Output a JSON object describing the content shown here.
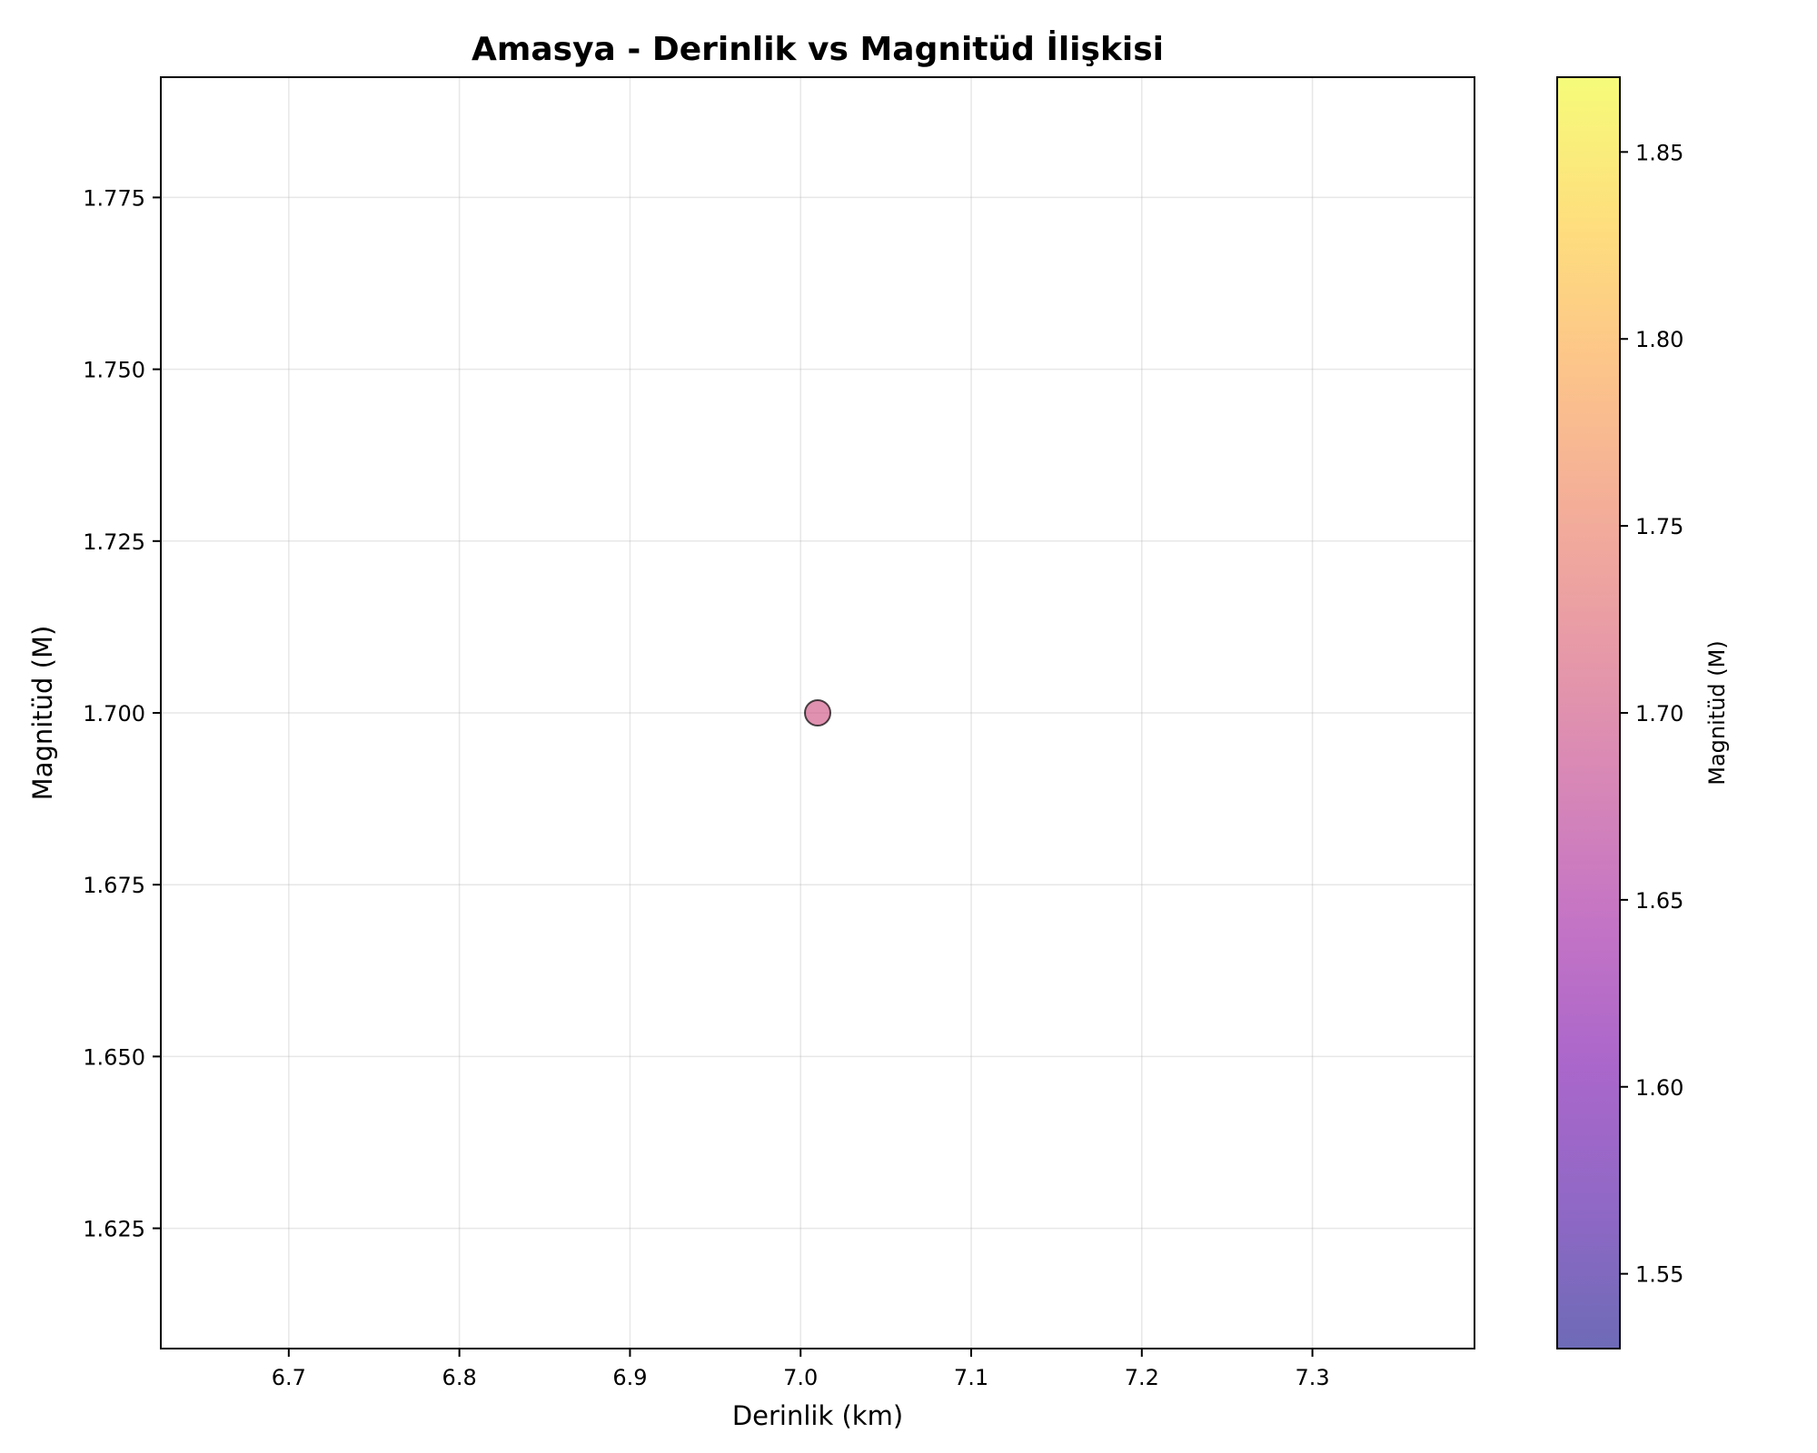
{
  "chart_data": {
    "type": "scatter",
    "title": "Amasya - Derinlik vs Magnitüd İlişkisi",
    "xlabel": "Derinlik (km)",
    "ylabel": "Magnitüd (M)",
    "xlim": [
      6.625,
      7.395
    ],
    "ylim": [
      1.6075,
      1.7925
    ],
    "xticks": [
      6.7,
      6.8,
      6.9,
      7.0,
      7.1,
      7.2,
      7.3
    ],
    "xtick_labels": [
      "6.7",
      "6.8",
      "6.9",
      "7.0",
      "7.1",
      "7.2",
      "7.3"
    ],
    "yticks": [
      1.625,
      1.65,
      1.675,
      1.7,
      1.725,
      1.75,
      1.775
    ],
    "ytick_labels": [
      "1.625",
      "1.650",
      "1.675",
      "1.700",
      "1.725",
      "1.750",
      "1.775"
    ],
    "grid": true,
    "points": [
      {
        "x": 7.01,
        "y": 1.7,
        "color_value": 1.7
      }
    ],
    "colorbar": {
      "label": "Magnitüd (M)",
      "colormap": "plasma",
      "alpha": 0.6,
      "range": [
        1.53,
        1.87
      ],
      "ticks": [
        1.55,
        1.6,
        1.65,
        1.7,
        1.75,
        1.8,
        1.85
      ],
      "tick_labels": [
        "1.55",
        "1.60",
        "1.65",
        "1.70",
        "1.75",
        "1.80",
        "1.85"
      ]
    },
    "colors": {
      "marker_edge": "#000000",
      "grid": "#b0b0b0",
      "plasma_stops": [
        "#0d0887",
        "#46039f",
        "#7201a8",
        "#9c179e",
        "#bd3786",
        "#d8576b",
        "#ed7953",
        "#fb9f3a",
        "#fdca26",
        "#f0f921"
      ]
    }
  }
}
